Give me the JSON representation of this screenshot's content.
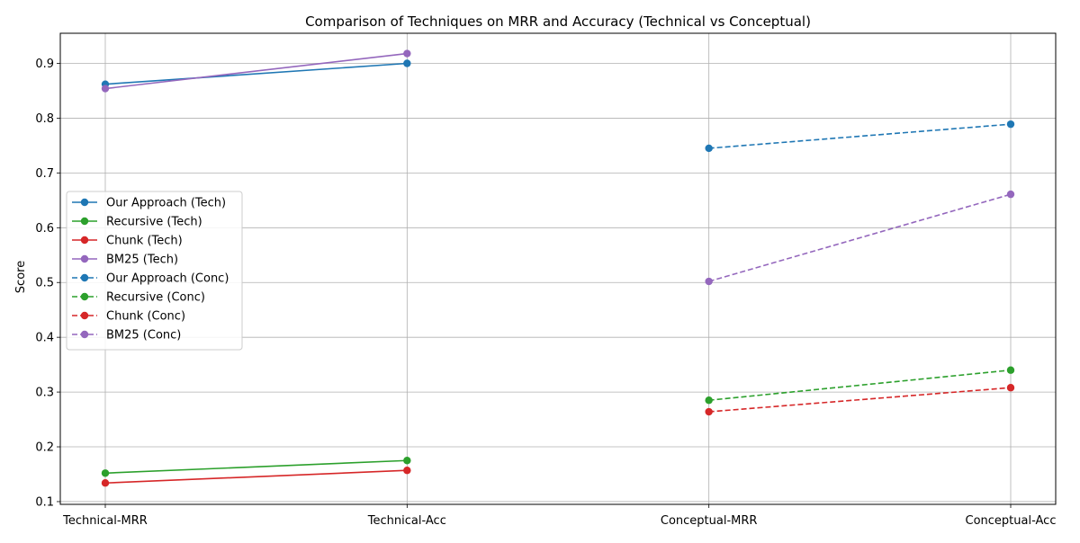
{
  "chart_data": {
    "type": "line",
    "title": "Comparison of Techniques on MRR and Accuracy (Technical vs Conceptual)",
    "xlabel": "",
    "ylabel": "Score",
    "categories": [
      "Technical-MRR",
      "Technical-Acc",
      "Conceptual-MRR",
      "Conceptual-Acc"
    ],
    "ylim": [
      0.095,
      0.955
    ],
    "yticks": [
      0.1,
      0.2,
      0.3,
      0.4,
      0.5,
      0.6,
      0.7,
      0.8,
      0.9
    ],
    "ytick_labels": [
      "0.1",
      "0.2",
      "0.3",
      "0.4",
      "0.5",
      "0.6",
      "0.7",
      "0.8",
      "0.9"
    ],
    "grid": true,
    "legend_position": "center-left",
    "series": [
      {
        "name": "Our Approach (Tech)",
        "color": "#1f77b4",
        "dash": "solid",
        "x": [
          "Technical-MRR",
          "Technical-Acc"
        ],
        "values": [
          0.862,
          0.9
        ]
      },
      {
        "name": "Recursive (Tech)",
        "color": "#2ca02c",
        "dash": "solid",
        "x": [
          "Technical-MRR",
          "Technical-Acc"
        ],
        "values": [
          0.152,
          0.175
        ]
      },
      {
        "name": "Chunk (Tech)",
        "color": "#d62728",
        "dash": "solid",
        "x": [
          "Technical-MRR",
          "Technical-Acc"
        ],
        "values": [
          0.134,
          0.157
        ]
      },
      {
        "name": "BM25 (Tech)",
        "color": "#9467bd",
        "dash": "solid",
        "x": [
          "Technical-MRR",
          "Technical-Acc"
        ],
        "values": [
          0.854,
          0.918
        ]
      },
      {
        "name": "Our Approach (Conc)",
        "color": "#1f77b4",
        "dash": "dashed",
        "x": [
          "Conceptual-MRR",
          "Conceptual-Acc"
        ],
        "values": [
          0.745,
          0.789
        ]
      },
      {
        "name": "Recursive (Conc)",
        "color": "#2ca02c",
        "dash": "dashed",
        "x": [
          "Conceptual-MRR",
          "Conceptual-Acc"
        ],
        "values": [
          0.285,
          0.34
        ]
      },
      {
        "name": "Chunk (Conc)",
        "color": "#d62728",
        "dash": "dashed",
        "x": [
          "Conceptual-MRR",
          "Conceptual-Acc"
        ],
        "values": [
          0.264,
          0.308
        ]
      },
      {
        "name": "BM25 (Conc)",
        "color": "#9467bd",
        "dash": "dashed",
        "x": [
          "Conceptual-MRR",
          "Conceptual-Acc"
        ],
        "values": [
          0.502,
          0.661
        ]
      }
    ]
  }
}
